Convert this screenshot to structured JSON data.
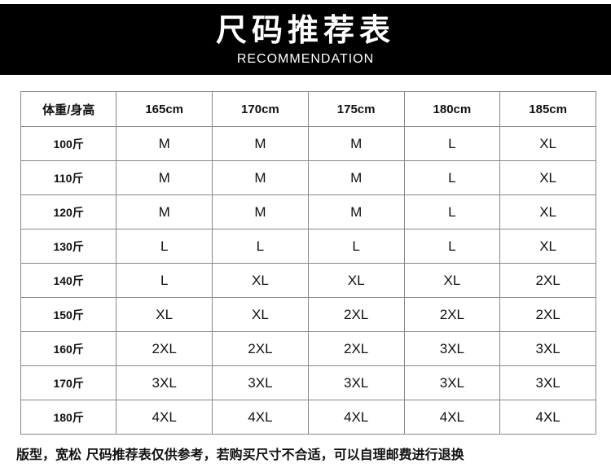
{
  "header": {
    "title": "尺码推荐表",
    "subtitle": "RECOMMENDATION"
  },
  "table": {
    "corner": "体重/身高",
    "columns": [
      "165cm",
      "170cm",
      "175cm",
      "180cm",
      "185cm"
    ],
    "rows": [
      {
        "weight": "100斤",
        "sizes": [
          "M",
          "M",
          "M",
          "L",
          "XL"
        ]
      },
      {
        "weight": "110斤",
        "sizes": [
          "M",
          "M",
          "M",
          "L",
          "XL"
        ]
      },
      {
        "weight": "120斤",
        "sizes": [
          "M",
          "M",
          "M",
          "L",
          "XL"
        ]
      },
      {
        "weight": "130斤",
        "sizes": [
          "L",
          "L",
          "L",
          "L",
          "XL"
        ]
      },
      {
        "weight": "140斤",
        "sizes": [
          "L",
          "XL",
          "XL",
          "XL",
          "2XL"
        ]
      },
      {
        "weight": "150斤",
        "sizes": [
          "XL",
          "XL",
          "2XL",
          "2XL",
          "2XL"
        ]
      },
      {
        "weight": "160斤",
        "sizes": [
          "2XL",
          "2XL",
          "2XL",
          "3XL",
          "3XL"
        ]
      },
      {
        "weight": "170斤",
        "sizes": [
          "3XL",
          "3XL",
          "3XL",
          "3XL",
          "3XL"
        ]
      },
      {
        "weight": "180斤",
        "sizes": [
          "4XL",
          "4XL",
          "4XL",
          "4XL",
          "4XL"
        ]
      }
    ]
  },
  "footer": {
    "note": "版型，宽松 尺码推荐表仅供参考，若购买尺寸不合适，可以自理邮费进行退换"
  }
}
